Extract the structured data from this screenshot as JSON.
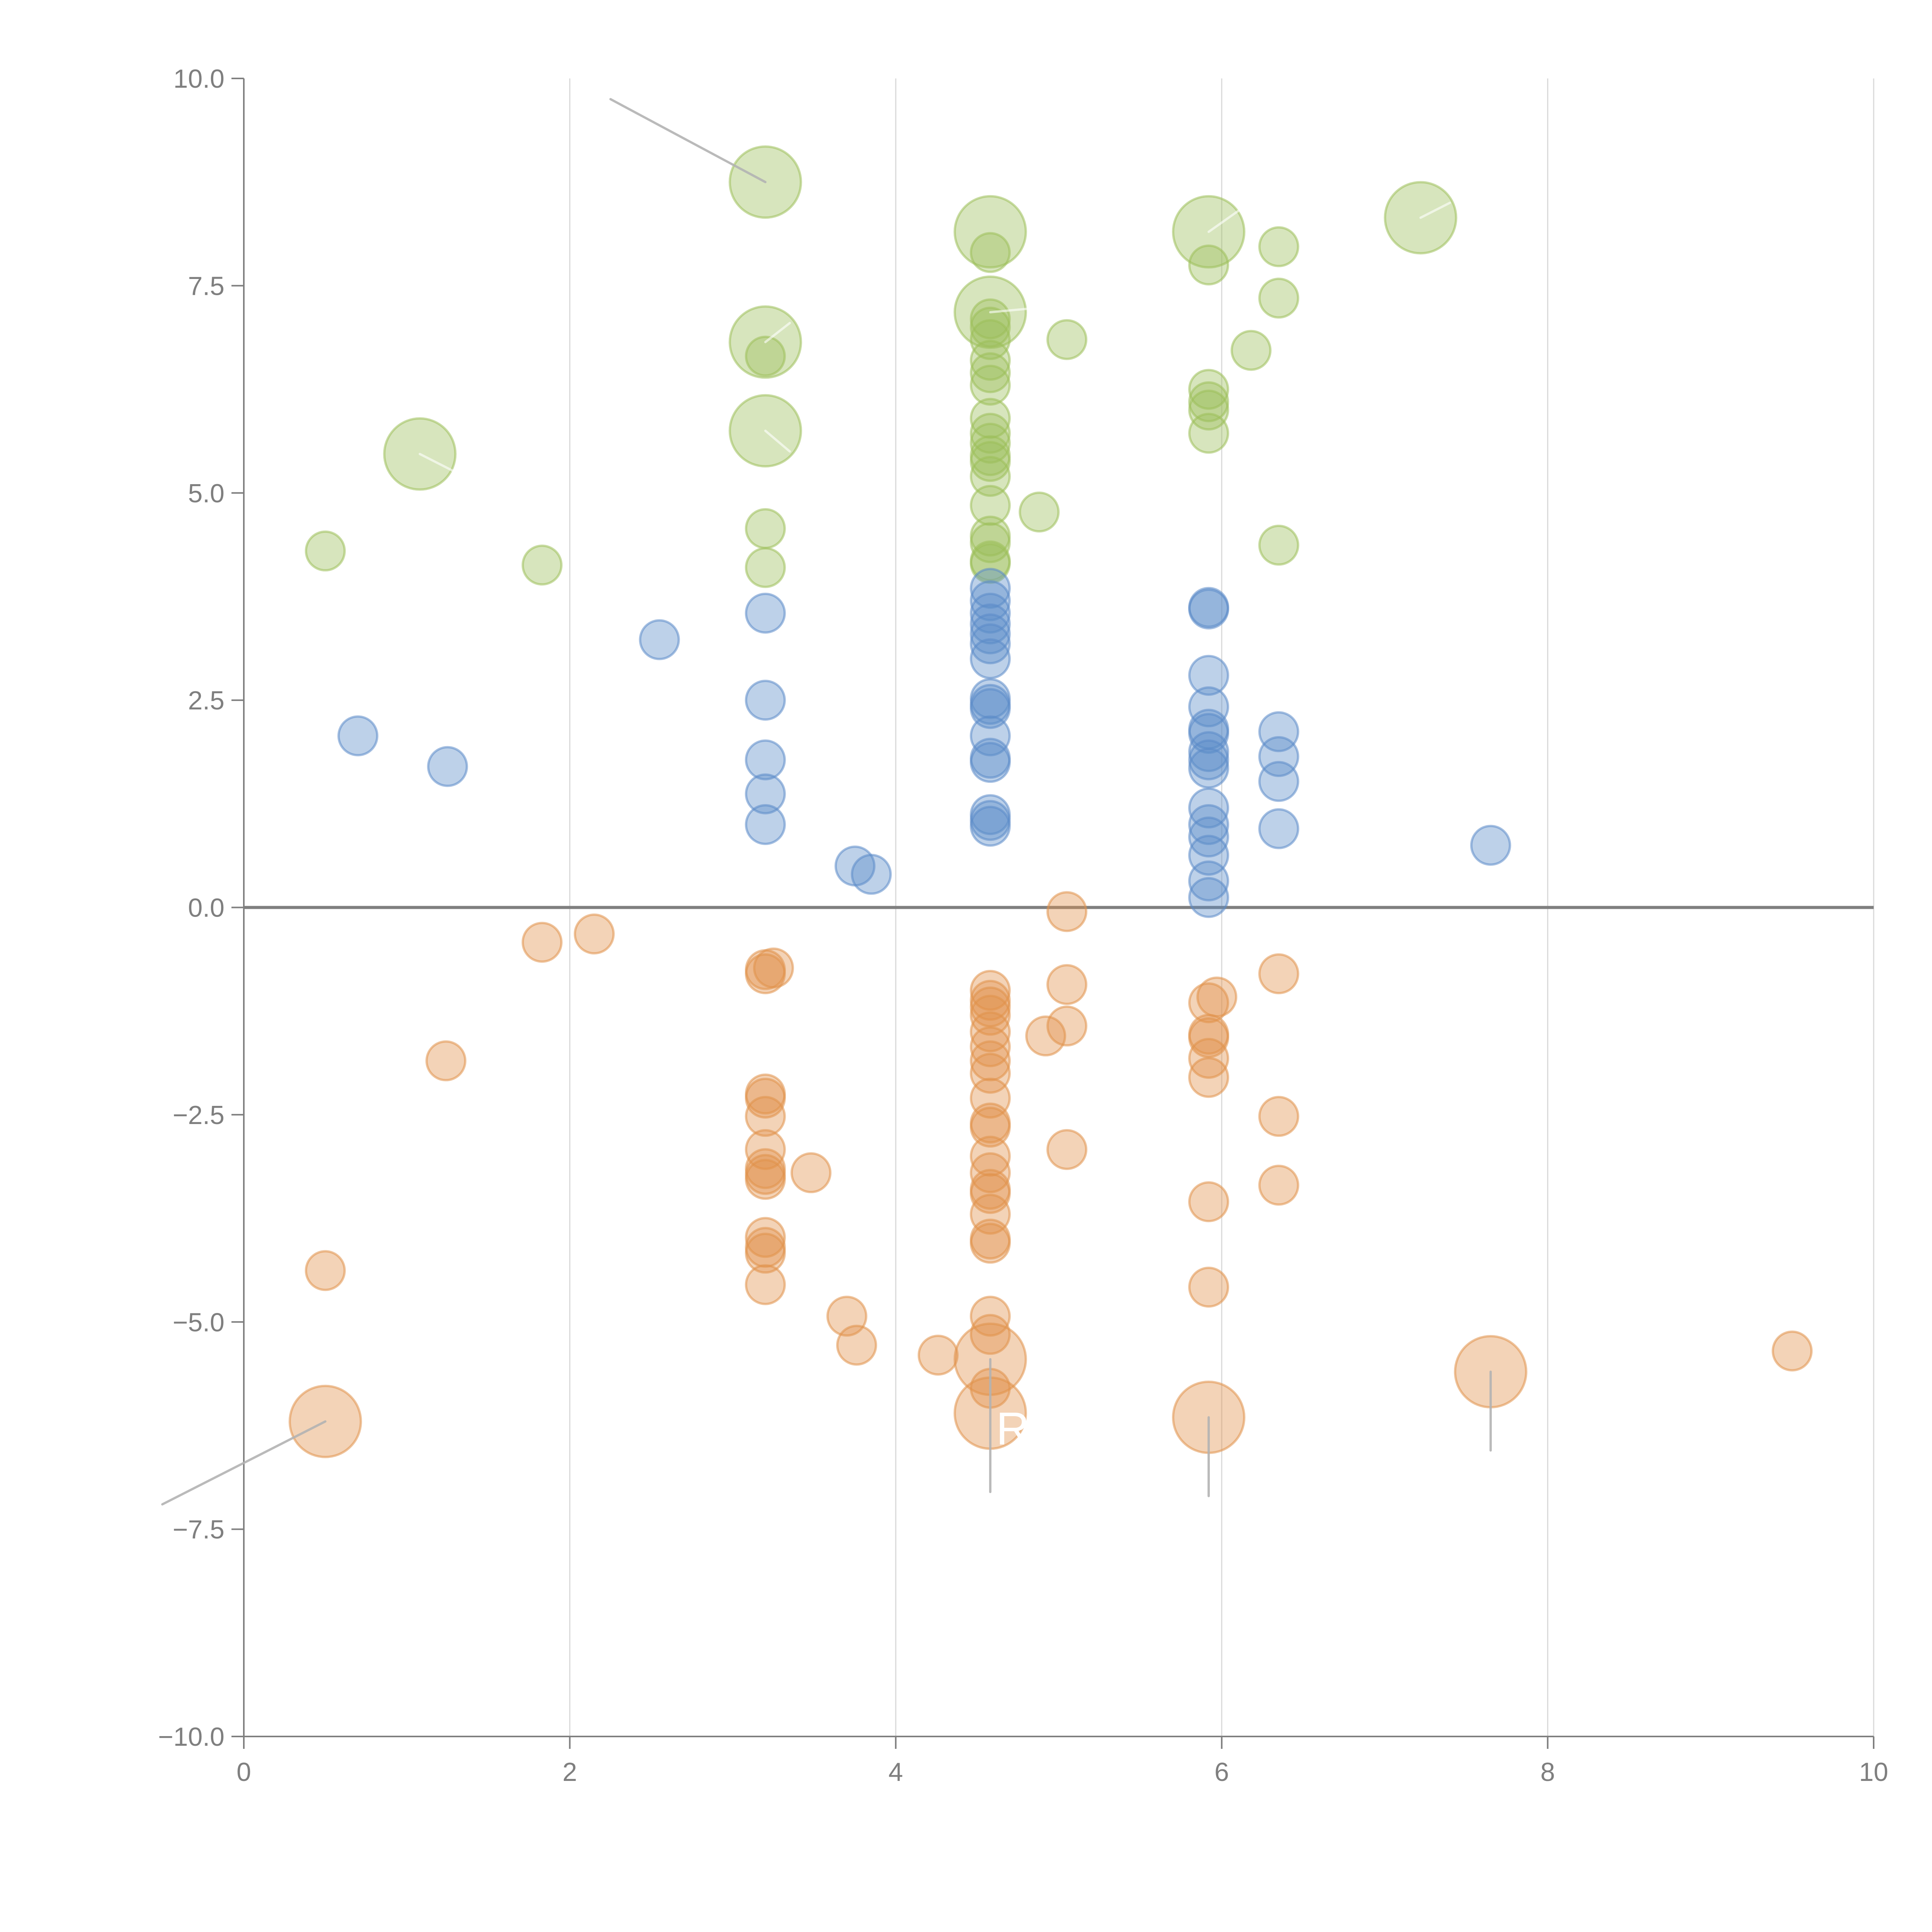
{
  "chart_data": {
    "type": "scatter",
    "title": "",
    "xlabel": "",
    "ylabel": "",
    "xlim": [
      0,
      10
    ],
    "ylim": [
      -10,
      10
    ],
    "grid": "vertical",
    "x_ticks": [
      "0",
      "2",
      "4",
      "6",
      "8",
      "10"
    ],
    "y_ticks": [
      "10.0",
      "7.5",
      "5.0",
      "2.5",
      "0.0",
      "−2.5",
      "−5.0",
      "−7.5",
      "−10.0"
    ],
    "colors": {
      "green": "#9cbf5a",
      "blue": "#5b8bc9",
      "orange": "#e0914a",
      "axis": "#7f7f7f",
      "grid": "#d9d9d9",
      "leader": "#b3b3b3"
    },
    "series": [
      {
        "name": "green",
        "color": "#9cbf5a",
        "points": [
          [
            3.2,
            8.75,
            3
          ],
          [
            4.58,
            8.15,
            3
          ],
          [
            5.92,
            8.15,
            3
          ],
          [
            7.22,
            8.32,
            3
          ],
          [
            4.58,
            7.9,
            1
          ],
          [
            5.92,
            7.75,
            1
          ],
          [
            6.35,
            7.97,
            1
          ],
          [
            6.35,
            7.35,
            1
          ],
          [
            3.2,
            6.82,
            3
          ],
          [
            3.2,
            6.65,
            1
          ],
          [
            4.58,
            7.18,
            3
          ],
          [
            4.58,
            7.1,
            1
          ],
          [
            4.58,
            7.0,
            1
          ],
          [
            4.58,
            6.85,
            1
          ],
          [
            5.05,
            6.85,
            1
          ],
          [
            6.18,
            6.72,
            1
          ],
          [
            4.58,
            6.6,
            1
          ],
          [
            4.58,
            6.45,
            1
          ],
          [
            4.58,
            6.3,
            1
          ],
          [
            5.92,
            6.25,
            1
          ],
          [
            5.92,
            6.1,
            1
          ],
          [
            5.92,
            6.0,
            1
          ],
          [
            4.58,
            5.9,
            1
          ],
          [
            4.58,
            5.72,
            1
          ],
          [
            4.58,
            5.6,
            1
          ],
          [
            3.2,
            5.75,
            3
          ],
          [
            5.92,
            5.72,
            1
          ],
          [
            1.08,
            5.47,
            3
          ],
          [
            4.58,
            5.45,
            1
          ],
          [
            4.58,
            5.38,
            1
          ],
          [
            4.58,
            5.2,
            1
          ],
          [
            4.58,
            4.85,
            1
          ],
          [
            4.88,
            4.77,
            1
          ],
          [
            3.2,
            4.57,
            1
          ],
          [
            4.58,
            4.48,
            1
          ],
          [
            4.58,
            4.4,
            1
          ],
          [
            0.5,
            4.3,
            1
          ],
          [
            6.35,
            4.37,
            1
          ],
          [
            4.58,
            4.18,
            1
          ],
          [
            4.58,
            4.15,
            1
          ],
          [
            1.83,
            4.13,
            1
          ],
          [
            3.2,
            4.1,
            1
          ]
        ]
      },
      {
        "name": "blue",
        "color": "#5b8bc9",
        "points": [
          [
            4.58,
            3.85,
            1
          ],
          [
            4.58,
            3.7,
            1
          ],
          [
            4.58,
            3.55,
            1
          ],
          [
            5.92,
            3.62,
            1
          ],
          [
            5.92,
            3.6,
            1
          ],
          [
            3.2,
            3.55,
            1
          ],
          [
            4.58,
            3.42,
            1
          ],
          [
            4.58,
            3.3,
            1
          ],
          [
            4.58,
            3.18,
            1
          ],
          [
            2.55,
            3.23,
            1
          ],
          [
            4.58,
            3.0,
            1
          ],
          [
            5.92,
            2.8,
            1
          ],
          [
            3.2,
            2.5,
            1
          ],
          [
            4.58,
            2.52,
            1
          ],
          [
            4.58,
            2.45,
            1
          ],
          [
            4.58,
            2.4,
            1
          ],
          [
            5.92,
            2.42,
            1
          ],
          [
            5.92,
            2.15,
            1
          ],
          [
            5.92,
            2.1,
            1
          ],
          [
            6.35,
            2.12,
            1
          ],
          [
            0.7,
            2.07,
            1
          ],
          [
            4.58,
            2.07,
            1
          ],
          [
            5.92,
            1.88,
            1
          ],
          [
            5.92,
            1.78,
            1
          ],
          [
            6.35,
            1.82,
            1
          ],
          [
            3.2,
            1.78,
            1
          ],
          [
            4.58,
            1.8,
            1
          ],
          [
            4.58,
            1.75,
            1
          ],
          [
            1.25,
            1.7,
            1
          ],
          [
            5.92,
            1.68,
            1
          ],
          [
            6.35,
            1.52,
            1
          ],
          [
            3.2,
            1.37,
            1
          ],
          [
            5.92,
            1.2,
            1
          ],
          [
            4.58,
            1.12,
            1
          ],
          [
            4.58,
            1.05,
            1
          ],
          [
            4.58,
            0.98,
            1
          ],
          [
            3.2,
            1.0,
            1
          ],
          [
            5.92,
            1.0,
            1
          ],
          [
            6.35,
            0.95,
            1
          ],
          [
            5.92,
            0.85,
            1
          ],
          [
            7.65,
            0.75,
            1
          ],
          [
            5.92,
            0.63,
            1
          ],
          [
            3.75,
            0.5,
            1
          ],
          [
            3.85,
            0.4,
            1
          ],
          [
            5.92,
            0.32,
            1
          ],
          [
            5.92,
            0.12,
            1
          ]
        ]
      },
      {
        "name": "orange",
        "color": "#e0914a",
        "points": [
          [
            5.05,
            -0.05,
            1
          ],
          [
            2.15,
            -0.32,
            1
          ],
          [
            1.83,
            -0.42,
            1
          ],
          [
            3.2,
            -0.75,
            1
          ],
          [
            3.25,
            -0.73,
            1
          ],
          [
            3.2,
            -0.8,
            1
          ],
          [
            6.35,
            -0.8,
            1
          ],
          [
            5.05,
            -0.93,
            1
          ],
          [
            4.58,
            -1.0,
            1
          ],
          [
            5.97,
            -1.08,
            1
          ],
          [
            5.92,
            -1.15,
            1
          ],
          [
            4.58,
            -1.12,
            1
          ],
          [
            4.58,
            -1.2,
            1
          ],
          [
            4.58,
            -1.3,
            1
          ],
          [
            5.05,
            -1.43,
            1
          ],
          [
            4.58,
            -1.5,
            1
          ],
          [
            4.92,
            -1.55,
            1
          ],
          [
            5.92,
            -1.53,
            1
          ],
          [
            5.92,
            -1.57,
            1
          ],
          [
            4.58,
            -1.68,
            1
          ],
          [
            4.58,
            -1.85,
            1
          ],
          [
            1.24,
            -1.85,
            1
          ],
          [
            5.92,
            -1.82,
            1
          ],
          [
            4.58,
            -2.0,
            1
          ],
          [
            5.92,
            -2.05,
            1
          ],
          [
            3.2,
            -2.25,
            1
          ],
          [
            3.2,
            -2.3,
            1
          ],
          [
            4.58,
            -2.3,
            1
          ],
          [
            3.2,
            -2.52,
            1
          ],
          [
            6.35,
            -2.52,
            1
          ],
          [
            4.58,
            -2.6,
            1
          ],
          [
            4.58,
            -2.65,
            1
          ],
          [
            3.2,
            -2.92,
            1
          ],
          [
            5.05,
            -2.92,
            1
          ],
          [
            4.58,
            -3.0,
            1
          ],
          [
            3.2,
            -3.15,
            1
          ],
          [
            3.2,
            -3.22,
            1
          ],
          [
            3.2,
            -3.28,
            1
          ],
          [
            3.48,
            -3.2,
            1
          ],
          [
            4.58,
            -3.2,
            1
          ],
          [
            4.58,
            -3.4,
            1
          ],
          [
            4.58,
            -3.45,
            1
          ],
          [
            6.35,
            -3.35,
            1
          ],
          [
            5.92,
            -3.55,
            1
          ],
          [
            4.58,
            -3.7,
            1
          ],
          [
            3.2,
            -3.98,
            1
          ],
          [
            4.58,
            -4.0,
            1
          ],
          [
            4.58,
            -4.05,
            1
          ],
          [
            3.2,
            -4.1,
            1
          ],
          [
            3.2,
            -4.17,
            1
          ],
          [
            0.5,
            -4.38,
            1
          ],
          [
            3.2,
            -4.55,
            1
          ],
          [
            5.92,
            -4.58,
            1
          ],
          [
            3.7,
            -4.93,
            1
          ],
          [
            4.58,
            -4.93,
            1
          ],
          [
            4.58,
            -5.15,
            1
          ],
          [
            3.76,
            -5.28,
            1
          ],
          [
            9.5,
            -5.35,
            1
          ],
          [
            4.26,
            -5.4,
            1
          ],
          [
            4.58,
            -5.45,
            3
          ],
          [
            7.65,
            -5.6,
            3
          ],
          [
            4.58,
            -5.8,
            1
          ],
          [
            4.58,
            -6.1,
            3
          ],
          [
            5.92,
            -6.15,
            3
          ],
          [
            0.5,
            -6.2,
            3
          ]
        ]
      }
    ],
    "annotations": [
      {
        "text": "",
        "point": [
          3.2,
          8.75
        ],
        "label_at": [
          2.25,
          9.75
        ],
        "leader": "gray"
      },
      {
        "text": "",
        "point": [
          4.58,
          7.18
        ],
        "label_at": [
          4.8,
          7.22
        ],
        "leader": "white"
      },
      {
        "text": "",
        "point": [
          5.92,
          8.15
        ],
        "label_at": [
          6.1,
          8.4
        ],
        "leader": "white"
      },
      {
        "text": "",
        "point": [
          7.22,
          8.32
        ],
        "label_at": [
          7.4,
          8.5
        ],
        "leader": "white"
      },
      {
        "text": "",
        "point": [
          3.2,
          6.82
        ],
        "label_at": [
          3.35,
          7.05
        ],
        "leader": "white"
      },
      {
        "text": "",
        "point": [
          3.2,
          5.75
        ],
        "label_at": [
          3.35,
          5.5
        ],
        "leader": "white"
      },
      {
        "text": "",
        "point": [
          1.08,
          5.47
        ],
        "label_at": [
          1.3,
          5.25
        ],
        "leader": "white"
      },
      {
        "text": "",
        "point": [
          0.5,
          -6.2
        ],
        "label_at": [
          -0.5,
          -7.2
        ],
        "leader": "gray"
      },
      {
        "text": "R",
        "point": [
          4.58,
          -5.45
        ],
        "label_at": [
          4.58,
          -7.05
        ],
        "leader": "gray"
      },
      {
        "text": "",
        "point": [
          5.92,
          -6.15
        ],
        "label_at": [
          5.92,
          -7.1
        ],
        "leader": "gray"
      },
      {
        "text": "",
        "point": [
          7.65,
          -5.6
        ],
        "label_at": [
          7.65,
          -6.55
        ],
        "leader": "gray"
      }
    ]
  }
}
